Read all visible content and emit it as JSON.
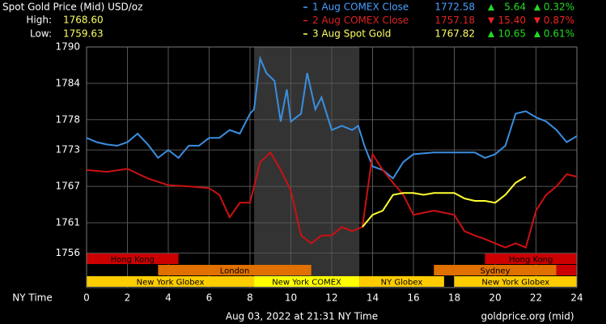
{
  "chart_data": {
    "type": "line",
    "title": "Spot Gold Price (Mid) USD/oz",
    "high_label": "High:",
    "high": {
      "value": 1768.6,
      "label": "1768.60"
    },
    "low_label": "Low:",
    "low": 1759.63,
    "x_label": "NY Time",
    "timestamp": "Aug 03, 2022 at 21:31 NY Time",
    "source": "goldprice.org (mid)",
    "xlim": [
      0,
      24
    ],
    "xticks": [
      0,
      2,
      4,
      6,
      8,
      10,
      12,
      14,
      16,
      18,
      20,
      22,
      24
    ],
    "ylim": [
      1750.3,
      1790
    ],
    "yticks": [
      1790,
      1784,
      1778,
      1773,
      1767,
      1761,
      1756
    ],
    "grid": true,
    "shaded_x": [
      8.2,
      13.35
    ],
    "series": [
      {
        "name": "1 Aug COMEX Close",
        "color": "#3a8ee0",
        "text_color": "#4aa0ff",
        "last": 1772.58,
        "change": 5.64,
        "change_pct": {
          "value": 0.32,
          "label": "0.32%"
        },
        "x": [
          0,
          0.5,
          1,
          1.5,
          2,
          2.5,
          3,
          3.5,
          4,
          4.5,
          5,
          5.5,
          6,
          6.5,
          7,
          7.5,
          8,
          8.2,
          8.5,
          8.8,
          9.2,
          9.5,
          9.8,
          10,
          10.5,
          10.8,
          11.2,
          11.5,
          12,
          12.5,
          13,
          13.3,
          13.6,
          14,
          14.5,
          15,
          15.5,
          16,
          17,
          18,
          19,
          19.5,
          20,
          20.5,
          21,
          21.5,
          22,
          22.5,
          23,
          23.5,
          24
        ],
        "values": [
          1775.0,
          1774.3,
          1773.9,
          1773.7,
          1774.3,
          1775.7,
          1773.9,
          1771.7,
          1773.0,
          1771.7,
          1773.7,
          1773.7,
          1775.0,
          1775.0,
          1776.3,
          1775.7,
          1779.0,
          1779.7,
          1788.1,
          1785.7,
          1784.4,
          1777.7,
          1783.0,
          1777.7,
          1779.0,
          1785.7,
          1779.7,
          1781.7,
          1776.3,
          1777.0,
          1776.3,
          1777.0,
          1773.7,
          1770.3,
          1769.7,
          1768.3,
          1771.0,
          1772.3,
          1772.6,
          1772.6,
          1772.6,
          1771.7,
          1772.3,
          1773.7,
          1779.0,
          1779.4,
          1778.4,
          1777.7,
          1776.3,
          1774.3,
          1775.3
        ]
      },
      {
        "name": "2 Aug COMEX Close",
        "color": "#cc1111",
        "text_color": "#dd2222",
        "last": 1757.18,
        "change": {
          "value": -15.4,
          "label": "15.40"
        },
        "change_pct": {
          "value": -0.87,
          "label": "0.87%"
        },
        "x": [
          0,
          1,
          2,
          3,
          4,
          5,
          6,
          6.5,
          7,
          7.5,
          8,
          8.5,
          9,
          9.5,
          10,
          10.5,
          11,
          11.5,
          12,
          12.5,
          13,
          13.5,
          14,
          14.5,
          15,
          15.5,
          16,
          17,
          18,
          18.5,
          19,
          19.5,
          20,
          20.5,
          21,
          21.5,
          22,
          22.5,
          23,
          23.5,
          24
        ],
        "values": [
          1769.7,
          1769.4,
          1769.9,
          1768.3,
          1767.2,
          1767.0,
          1766.7,
          1765.6,
          1761.9,
          1764.3,
          1764.3,
          1771.0,
          1772.6,
          1769.7,
          1766.3,
          1758.9,
          1757.6,
          1758.9,
          1758.9,
          1760.3,
          1759.6,
          1760.3,
          1772.3,
          1769.7,
          1767.6,
          1765.6,
          1762.3,
          1763.0,
          1762.3,
          1759.6,
          1758.9,
          1758.3,
          1757.6,
          1756.9,
          1757.6,
          1756.9,
          1763.0,
          1765.6,
          1767.0,
          1769.0,
          1768.6
        ]
      },
      {
        "name": "3 Aug Spot Gold",
        "color": "#ffff33",
        "text_color": "#ffff66",
        "last": 1767.82,
        "change": 10.65,
        "change_pct": {
          "value": 0.61,
          "label": "0.61%"
        },
        "x": [
          13.5,
          14,
          14.5,
          15,
          15.5,
          16,
          16.5,
          17,
          18,
          18.5,
          19,
          19.5,
          20,
          20.5,
          21,
          21.5
        ],
        "values": [
          1760.3,
          1762.3,
          1763.0,
          1765.6,
          1765.9,
          1765.9,
          1765.6,
          1765.9,
          1765.9,
          1765.0,
          1764.6,
          1764.6,
          1764.3,
          1765.6,
          1767.6,
          1768.6
        ]
      }
    ],
    "sessions": [
      {
        "name": "Hong Kong",
        "row": 0,
        "start": 0,
        "end": 4.5,
        "color": "#cc0000"
      },
      {
        "name": "Hong Kong",
        "row": 0,
        "start": 19.5,
        "end": 24,
        "color": "#cc0000"
      },
      {
        "name": "London",
        "row": 1,
        "start": 3.5,
        "end": 11,
        "color": "#e07000"
      },
      {
        "name": "Sydney",
        "row": 1,
        "start": 17,
        "end": 23,
        "color": "#e07000"
      },
      {
        "name": null,
        "row": 1,
        "start": 23,
        "end": 24,
        "color": "#cc0000"
      },
      {
        "name": "New York Globex",
        "row": 2,
        "start": 0,
        "end": 8.2,
        "color": "#ffcc00"
      },
      {
        "name": "New York COMEX",
        "row": 2,
        "start": 8.2,
        "end": 13.35,
        "color": "#ffff00"
      },
      {
        "name": "NY Globex",
        "row": 2,
        "start": 13.35,
        "end": 17.5,
        "color": "#ffcc00"
      },
      {
        "name": "New York Globex",
        "row": 2,
        "start": 18,
        "end": 24,
        "color": "#ffcc00"
      }
    ]
  }
}
